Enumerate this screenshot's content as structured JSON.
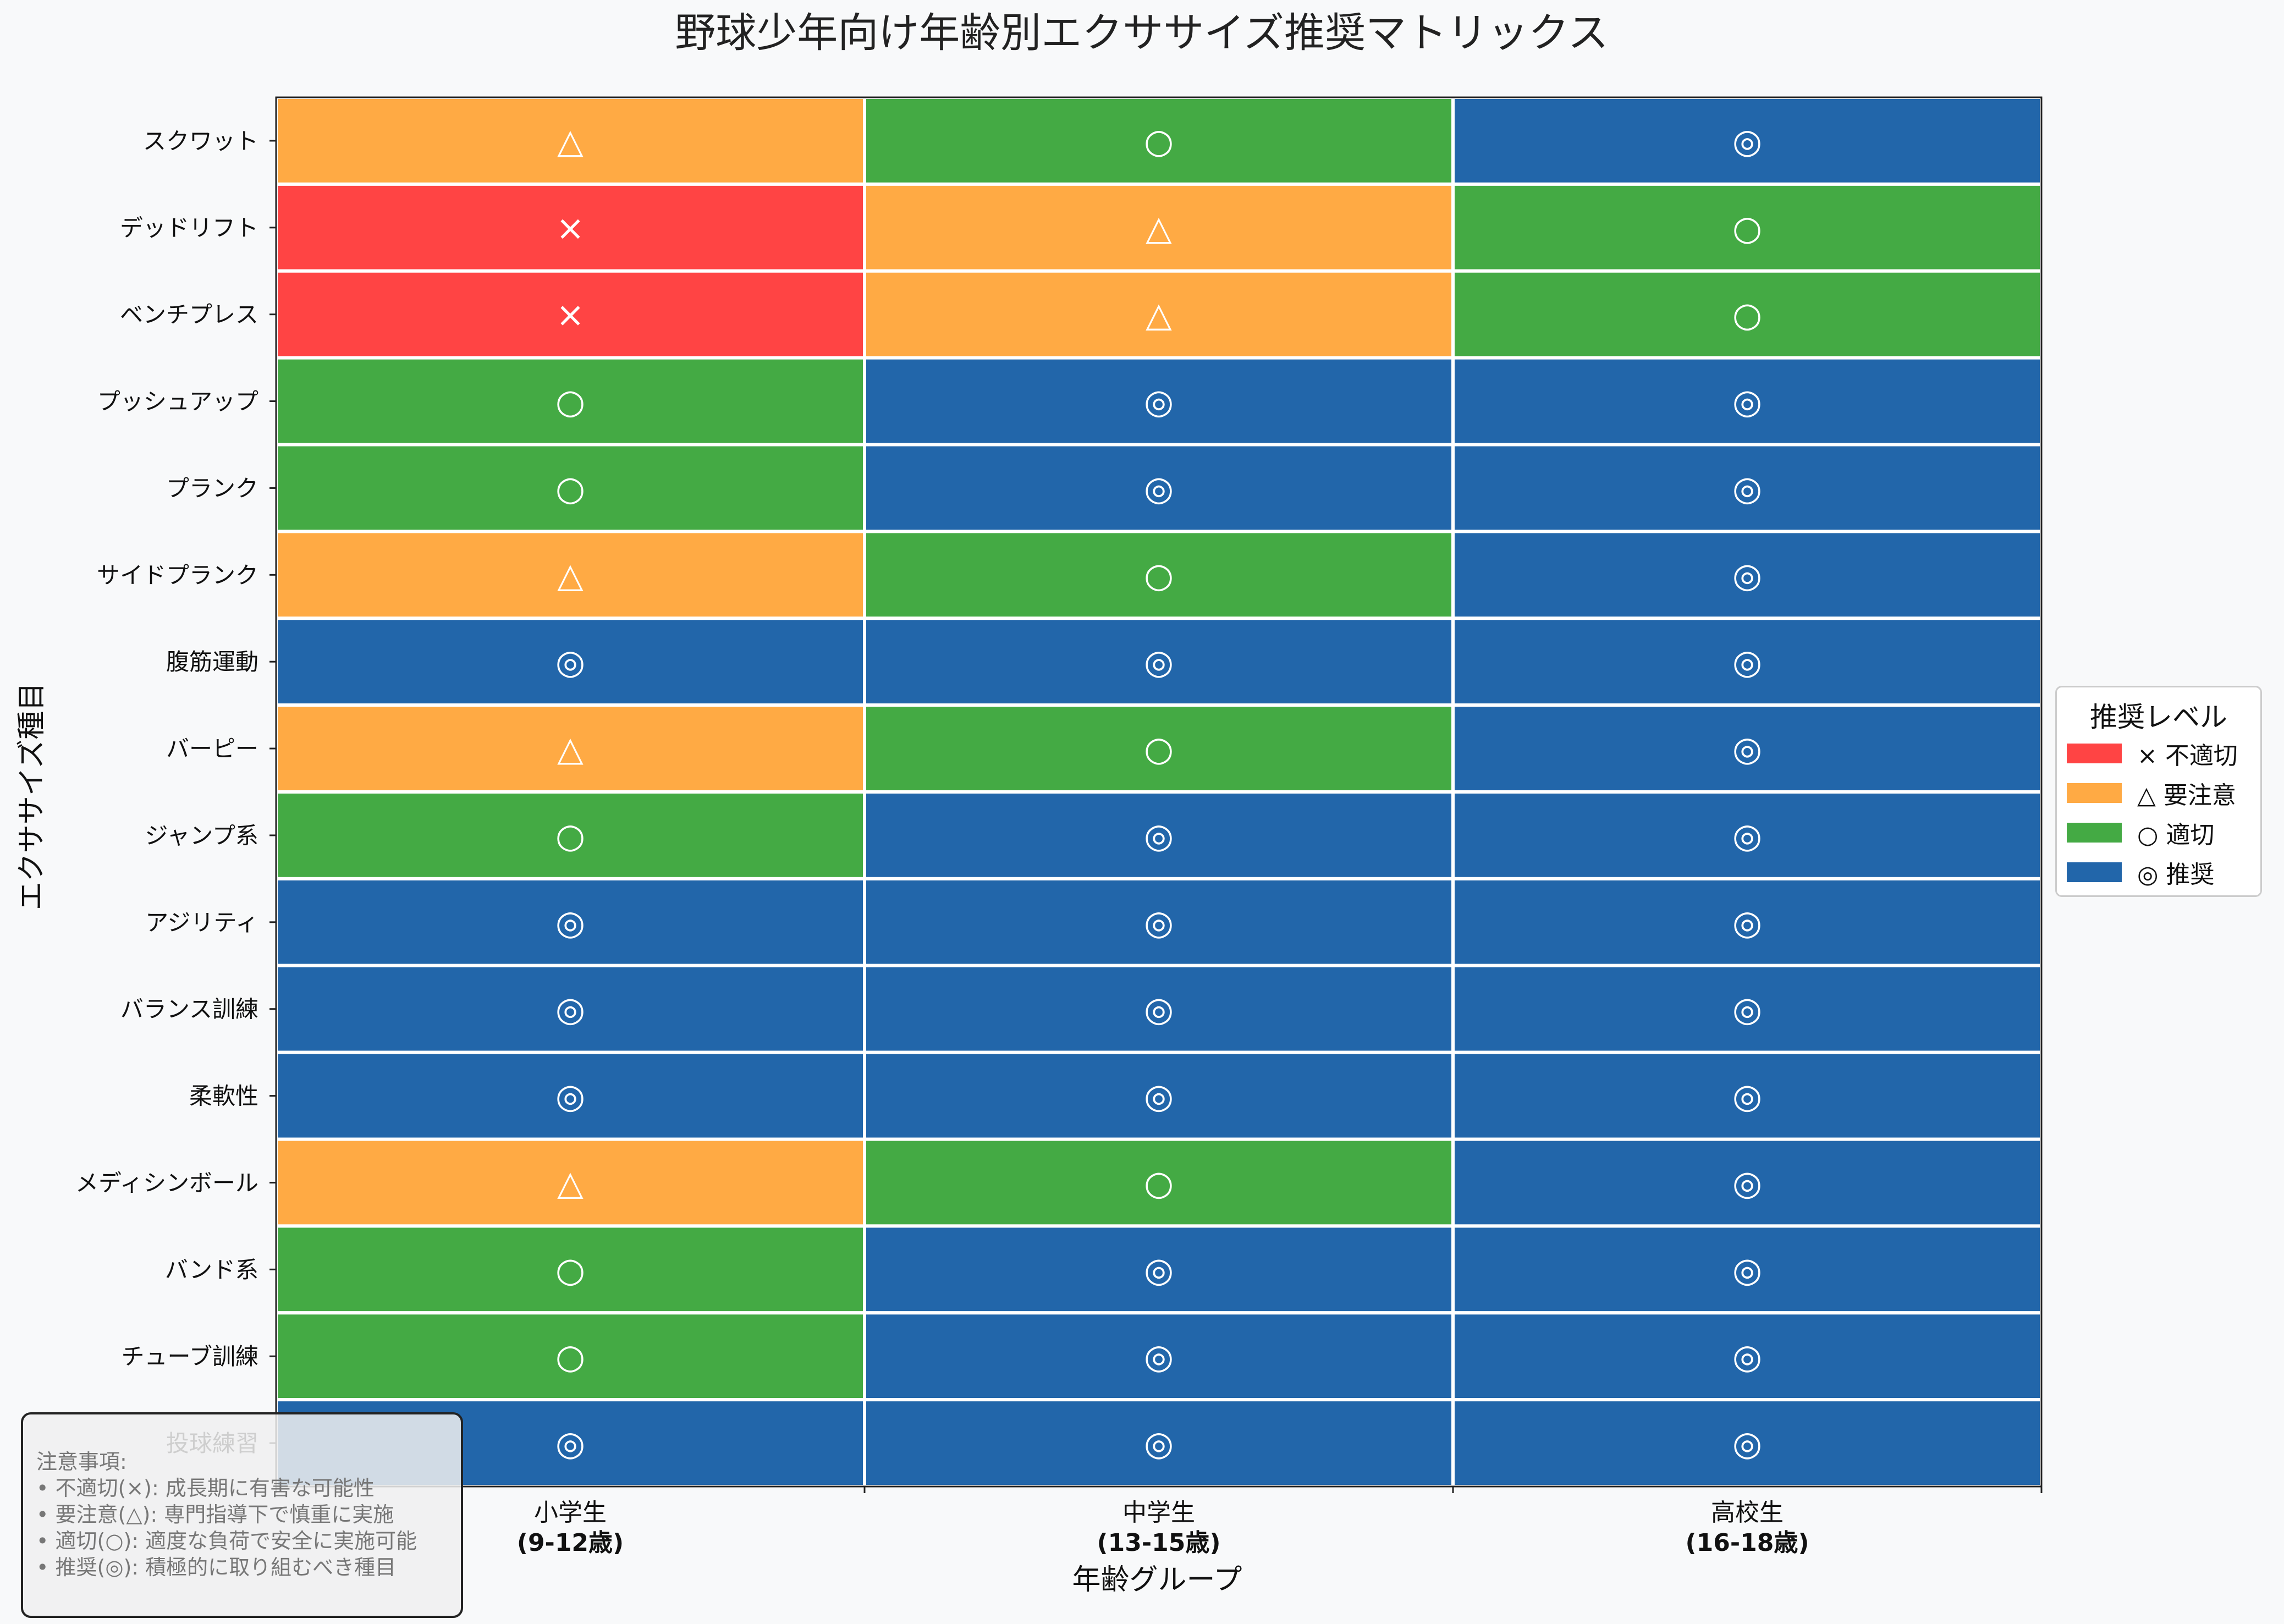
{
  "chart_data": {
    "type": "heatmap",
    "title": "野球少年向け年齢別エクササイズ推奨マトリックス",
    "xlabel": "年齢グループ",
    "ylabel": "エクササイズ種目",
    "columns": [
      {
        "name": "小学生",
        "sub": "(9-12歳)"
      },
      {
        "name": "中学生",
        "sub": "(13-15歳)"
      },
      {
        "name": "高校生",
        "sub": "(16-18歳)"
      }
    ],
    "rows": [
      "スクワット",
      "デッドリフト",
      "ベンチプレス",
      "プッシュアップ",
      "プランク",
      "サイドプランク",
      "腹筋運動",
      "バーピー",
      "ジャンプ系",
      "アジリティ",
      "バランス訓練",
      "柔軟性",
      "メディシンボール",
      "バンド系",
      "チューブ訓練",
      "投球練習"
    ],
    "values": [
      [
        1,
        2,
        3
      ],
      [
        0,
        1,
        2
      ],
      [
        0,
        1,
        2
      ],
      [
        2,
        3,
        3
      ],
      [
        2,
        3,
        3
      ],
      [
        1,
        2,
        3
      ],
      [
        3,
        3,
        3
      ],
      [
        1,
        2,
        3
      ],
      [
        2,
        3,
        3
      ],
      [
        3,
        3,
        3
      ],
      [
        3,
        3,
        3
      ],
      [
        3,
        3,
        3
      ],
      [
        1,
        2,
        3
      ],
      [
        2,
        3,
        3
      ],
      [
        2,
        3,
        3
      ],
      [
        3,
        3,
        3
      ]
    ],
    "levels": [
      {
        "value": 0,
        "symbol": "×",
        "label": "不適切",
        "color": "#ff4444"
      },
      {
        "value": 1,
        "symbol": "△",
        "label": "要注意",
        "color": "#ffaa44"
      },
      {
        "value": 2,
        "symbol": "○",
        "label": "適切",
        "color": "#44aa44"
      },
      {
        "value": 3,
        "symbol": "◎",
        "label": "推奨",
        "color": "#2266aa"
      }
    ],
    "legend": {
      "title": "推奨レベル",
      "placement": "right"
    }
  },
  "legend_items": [
    "× 不適切",
    "△ 要注意",
    "○ 適切",
    "◎ 推奨"
  ],
  "notes": {
    "heading": "注意事項:",
    "lines": [
      "• 不適切(×): 成長期に有害な可能性",
      "• 要注意(△): 専門指導下で慎重に実施",
      "• 適切(○): 適度な負荷で安全に実施可能",
      "• 推奨(◎): 積極的に取り組むべき種目"
    ]
  }
}
